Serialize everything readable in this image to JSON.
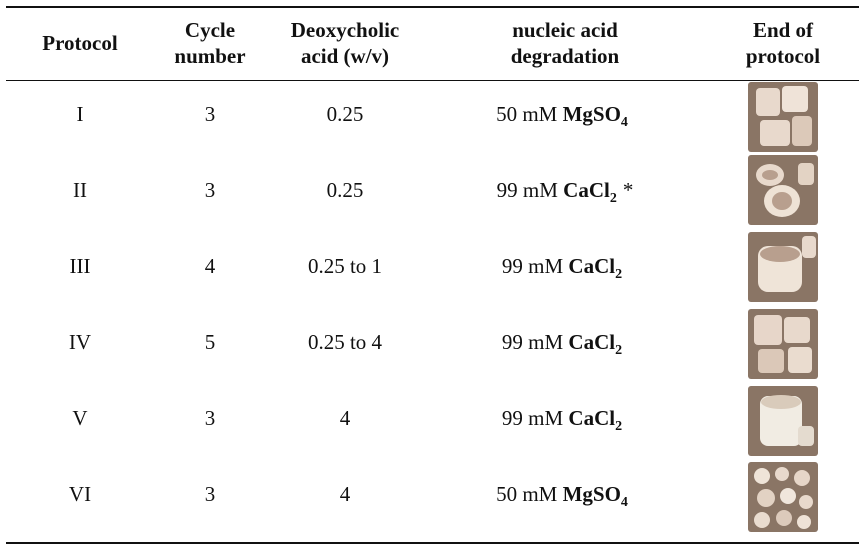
{
  "headers": {
    "protocol": "Protocol",
    "cycle": [
      "Cycle",
      "number"
    ],
    "deoxy": [
      "Deoxycholic",
      "acid (w/v)"
    ],
    "nucleic": [
      "nucleic acid",
      "degradation"
    ],
    "end": [
      "End of",
      "protocol"
    ]
  },
  "rows": [
    {
      "protocol": "I",
      "cycle": "3",
      "deoxy": "0.25",
      "amount": "50 mM",
      "reagent": "MgSO",
      "sub": "4",
      "note": "",
      "photo": "tissue-pieces-image"
    },
    {
      "protocol": "II",
      "cycle": "3",
      "deoxy": "0.25",
      "amount": "99 mM",
      "reagent": "CaCl",
      "sub": "2",
      "note": "*",
      "photo": "tissue-pieces-image"
    },
    {
      "protocol": "III",
      "cycle": "4",
      "deoxy": "0.25 to 1",
      "amount": "99 mM",
      "reagent": "CaCl",
      "sub": "2",
      "note": "",
      "photo": "tissue-pieces-image"
    },
    {
      "protocol": "IV",
      "cycle": "5",
      "deoxy": "0.25 to 4",
      "amount": "99 mM",
      "reagent": "CaCl",
      "sub": "2",
      "note": "",
      "photo": "tissue-pieces-image"
    },
    {
      "protocol": "V",
      "cycle": "3",
      "deoxy": "4",
      "amount": "99 mM",
      "reagent": "CaCl",
      "sub": "2",
      "note": "",
      "photo": "tissue-pieces-image"
    },
    {
      "protocol": "VI",
      "cycle": "3",
      "deoxy": "4",
      "amount": "50 mM",
      "reagent": "MgSO",
      "sub": "4",
      "note": "",
      "photo": "tissue-pieces-image"
    }
  ],
  "colors": {
    "rule": "#111111",
    "tissue": "#e8d9cc",
    "tissue_shadow": "#b89f8e",
    "background_photo": "#8a7565"
  }
}
